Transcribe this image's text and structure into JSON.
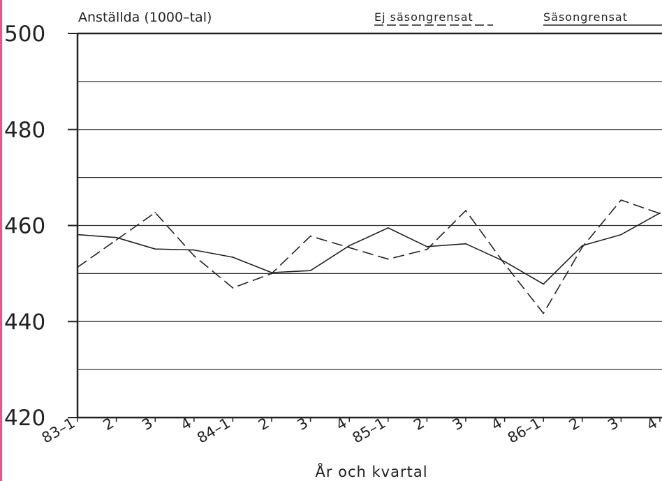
{
  "chart_data": {
    "type": "line",
    "title": "Anställda (1000–tal)",
    "xlabel": "År och kvartal",
    "ylabel": "",
    "ylim": [
      420,
      500
    ],
    "y_ticks": [
      "420",
      "440",
      "460",
      "480",
      "500"
    ],
    "y_gridlines": [
      430,
      440,
      450,
      460,
      470,
      480,
      490
    ],
    "grid": true,
    "categories": [
      "83–1",
      "2",
      "3",
      "4",
      "84–1",
      "2",
      "3",
      "4",
      "85–1",
      "2",
      "3",
      "4",
      "86–1",
      "2",
      "3",
      "4"
    ],
    "legend_position": "top-right",
    "series": [
      {
        "name": "Ej säsongrensat",
        "style": "dashed",
        "color": "#222222",
        "values": [
          451.3,
          457.0,
          462.7,
          453.7,
          447.0,
          450.0,
          457.8,
          455.4,
          453.0,
          455.0,
          463.1,
          452.0,
          441.7,
          455.5,
          465.3,
          462.5
        ]
      },
      {
        "name": "Säsongrensat",
        "style": "solid",
        "color": "#222222",
        "values": [
          458.1,
          457.5,
          455.1,
          454.9,
          453.4,
          450.2,
          450.6,
          455.8,
          459.5,
          455.6,
          456.2,
          452.5,
          447.8,
          455.8,
          458.1,
          462.6
        ]
      }
    ]
  }
}
